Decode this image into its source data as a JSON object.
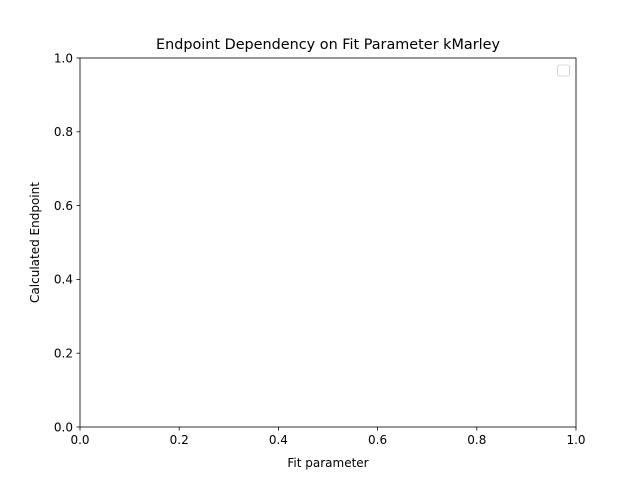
{
  "chart_data": {
    "type": "line",
    "title": "Endpoint Dependency on Fit Parameter kMarley",
    "xlabel": "Fit parameter",
    "ylabel": "Calculated Endpoint",
    "xlim": [
      0.0,
      1.0
    ],
    "ylim": [
      0.0,
      1.0
    ],
    "xticks": [
      0.0,
      0.2,
      0.4,
      0.6,
      0.8,
      1.0
    ],
    "xtick_labels": [
      "0.0",
      "0.2",
      "0.4",
      "0.6",
      "0.8",
      "1.0"
    ],
    "yticks": [
      0.0,
      0.2,
      0.4,
      0.6,
      0.8,
      1.0
    ],
    "ytick_labels": [
      "0.0",
      "0.2",
      "0.4",
      "0.6",
      "0.8",
      "1.0"
    ],
    "grid": false,
    "legend": {
      "placement": "top-right",
      "entries": []
    },
    "series": []
  }
}
